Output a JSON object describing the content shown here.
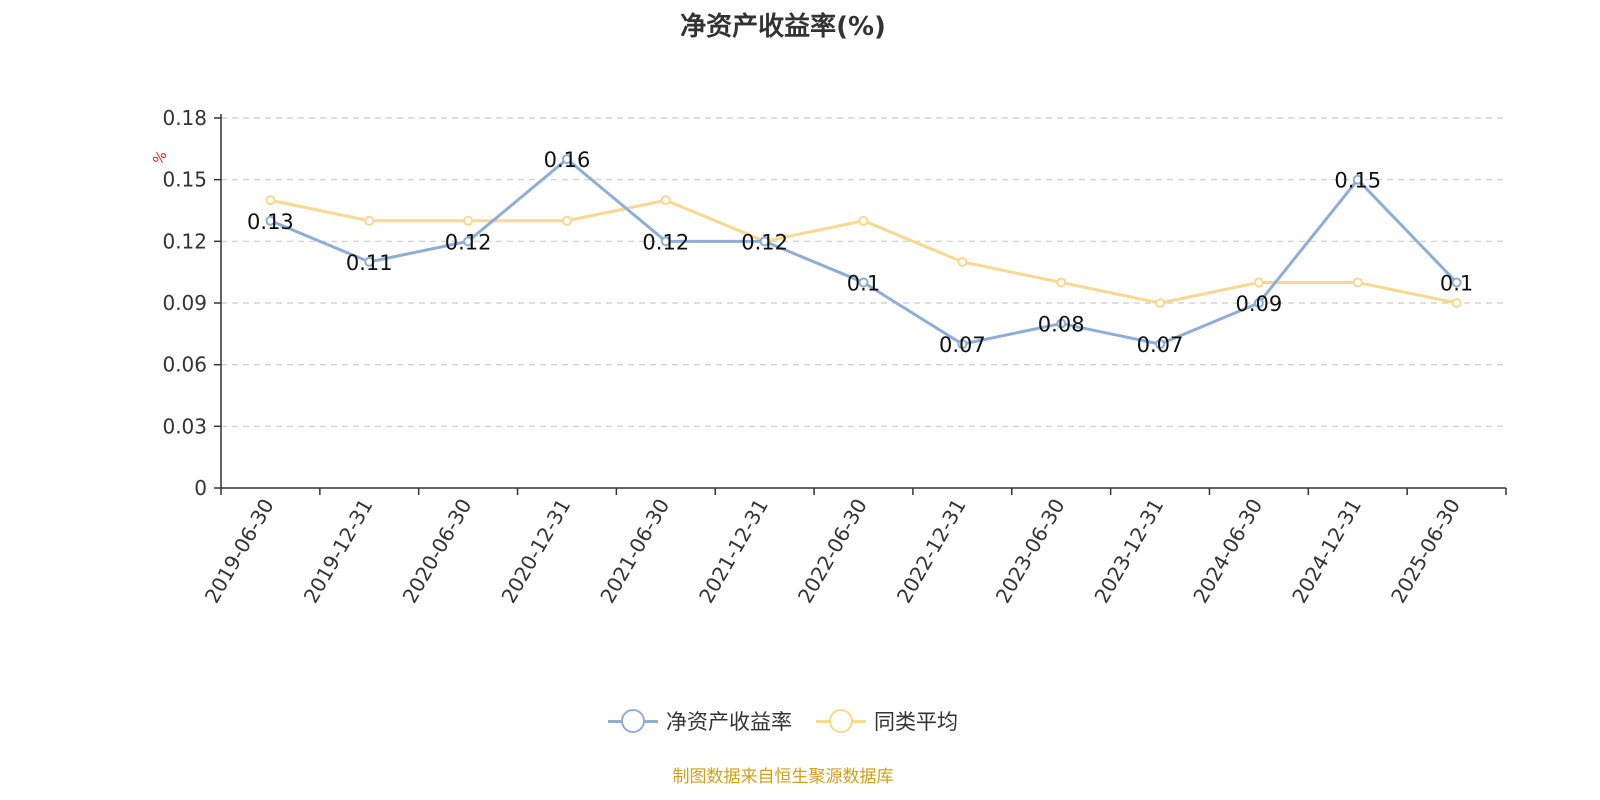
{
  "chart_data": {
    "type": "line",
    "title": "净资产收益率(%)",
    "ylabel": "%",
    "ylim": [
      0,
      0.18
    ],
    "yticks": [
      "0",
      "0.03",
      "0.06",
      "0.09",
      "0.12",
      "0.15",
      "0.18"
    ],
    "categories": [
      "2019-06-30",
      "2019-12-31",
      "2020-06-30",
      "2020-12-31",
      "2021-06-30",
      "2021-12-31",
      "2022-06-30",
      "2022-12-31",
      "2023-06-30",
      "2023-12-31",
      "2024-06-30",
      "2024-12-31",
      "2025-06-30"
    ],
    "series": [
      {
        "name": "净资产收益率",
        "color": "#8eaed8",
        "values": [
          0.13,
          0.11,
          0.12,
          0.16,
          0.12,
          0.12,
          0.1,
          0.07,
          0.08,
          0.07,
          0.09,
          0.15,
          0.1
        ],
        "labels": [
          "0.13",
          "0.11",
          "0.12",
          "0.16",
          "0.12",
          "0.12",
          "0.1",
          "0.07",
          "0.08",
          "0.07",
          "0.09",
          "0.15",
          "0.1"
        ]
      },
      {
        "name": "同类平均",
        "color": "#fad890",
        "values": [
          0.14,
          0.13,
          0.13,
          0.13,
          0.14,
          0.12,
          0.13,
          0.11,
          0.1,
          0.09,
          0.1,
          0.1,
          0.09
        ]
      }
    ],
    "grid": true,
    "legend_position": "bottom"
  },
  "source_text": "制图数据来自恒生聚源数据库"
}
